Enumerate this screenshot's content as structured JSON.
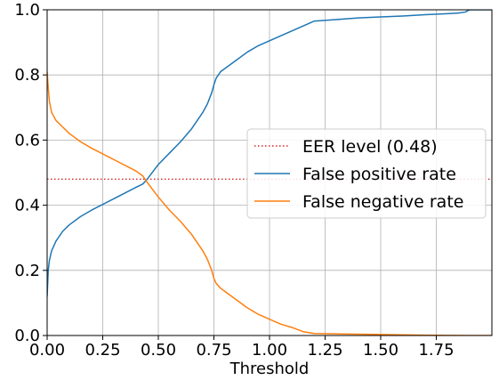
{
  "chart_data": {
    "type": "line",
    "title": "",
    "xlabel": "Threshold",
    "ylabel": "",
    "xlim": [
      0.0,
      2.0
    ],
    "ylim": [
      0.0,
      1.0
    ],
    "x_ticks": [
      "0.00",
      "0.25",
      "0.50",
      "0.75",
      "1.00",
      "1.25",
      "1.50",
      "1.75"
    ],
    "x_tick_values": [
      0.0,
      0.25,
      0.5,
      0.75,
      1.0,
      1.25,
      1.5,
      1.75
    ],
    "y_ticks": [
      "0.0",
      "0.2",
      "0.4",
      "0.6",
      "0.8",
      "1.0"
    ],
    "y_tick_values": [
      0.0,
      0.2,
      0.4,
      0.6,
      0.8,
      1.0
    ],
    "grid": true,
    "legend_position": "center-right",
    "series": [
      {
        "name": "EER level (0.48)",
        "color": "#d62728",
        "style": "dotted",
        "x": [
          0.0,
          2.0
        ],
        "y": [
          0.48,
          0.48
        ]
      },
      {
        "name": "False positive rate",
        "color": "#1f77b4",
        "style": "solid",
        "x": [
          0.0,
          0.005,
          0.01,
          0.02,
          0.04,
          0.07,
          0.1,
          0.15,
          0.2,
          0.3,
          0.4,
          0.43,
          0.45,
          0.5,
          0.55,
          0.6,
          0.65,
          0.7,
          0.72,
          0.74,
          0.75,
          0.76,
          0.78,
          0.8,
          0.85,
          0.9,
          0.95,
          1.0,
          1.05,
          1.1,
          1.15,
          1.2,
          1.3,
          1.4,
          1.5,
          1.6,
          1.7,
          1.8,
          1.85,
          1.88,
          1.9,
          1.93,
          1.96,
          2.0
        ],
        "y": [
          0.12,
          0.2,
          0.23,
          0.26,
          0.29,
          0.32,
          0.34,
          0.365,
          0.385,
          0.42,
          0.455,
          0.465,
          0.48,
          0.525,
          0.56,
          0.595,
          0.635,
          0.685,
          0.71,
          0.745,
          0.77,
          0.79,
          0.81,
          0.82,
          0.845,
          0.87,
          0.89,
          0.905,
          0.92,
          0.935,
          0.95,
          0.965,
          0.97,
          0.975,
          0.978,
          0.981,
          0.985,
          0.988,
          0.99,
          0.993,
          1.0,
          1.0,
          1.0,
          1.0
        ]
      },
      {
        "name": "False negative rate",
        "color": "#ff7f0e",
        "style": "solid",
        "x": [
          0.0,
          0.005,
          0.01,
          0.02,
          0.04,
          0.07,
          0.1,
          0.15,
          0.2,
          0.3,
          0.4,
          0.43,
          0.45,
          0.5,
          0.55,
          0.6,
          0.65,
          0.7,
          0.72,
          0.74,
          0.75,
          0.76,
          0.78,
          0.8,
          0.85,
          0.9,
          0.95,
          1.0,
          1.05,
          1.1,
          1.15,
          1.2,
          1.3,
          1.4,
          1.5,
          1.6,
          1.7,
          1.8,
          1.9,
          2.0
        ],
        "y": [
          0.81,
          0.76,
          0.72,
          0.685,
          0.66,
          0.64,
          0.62,
          0.595,
          0.575,
          0.54,
          0.505,
          0.49,
          0.47,
          0.425,
          0.385,
          0.35,
          0.31,
          0.26,
          0.235,
          0.2,
          0.175,
          0.16,
          0.145,
          0.135,
          0.11,
          0.085,
          0.065,
          0.05,
          0.035,
          0.025,
          0.012,
          0.006,
          0.005,
          0.004,
          0.003,
          0.002,
          0.001,
          0.0005,
          0.0,
          0.0
        ]
      }
    ]
  }
}
